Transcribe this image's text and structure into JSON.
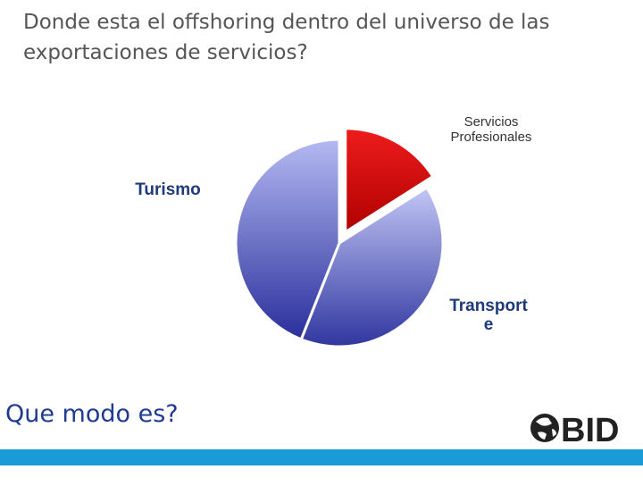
{
  "title": {
    "line1": "Donde esta el offshoring dentro del universo de las",
    "line2": "exportaciones de servicios?"
  },
  "subtitle": "Que modo es?",
  "logo": {
    "text": "BID"
  },
  "colors": {
    "accent_bar": "#1a9ad6",
    "subtitle": "#1f3a93"
  },
  "chart_data": {
    "type": "pie",
    "title": "",
    "exploded": "Servicios Profesionales",
    "slices": [
      {
        "label_lines": [
          "Servicios",
          "Profesionales"
        ],
        "value": 16,
        "color": "#d40000"
      },
      {
        "label_lines": [
          "Transport",
          "e"
        ],
        "value": 40,
        "color": "#6e78d6"
      },
      {
        "label_lines": [
          "Turismo"
        ],
        "value": 44,
        "color": "#8f97e4"
      }
    ]
  }
}
